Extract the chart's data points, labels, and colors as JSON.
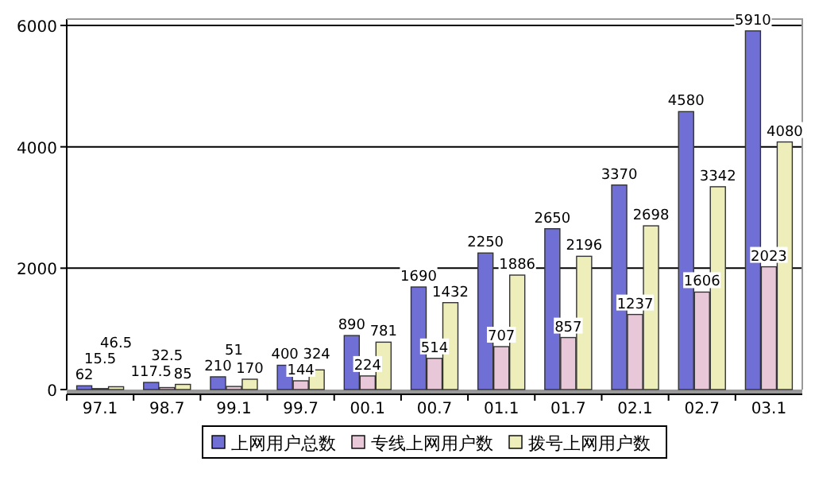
{
  "chart_data": {
    "type": "bar",
    "categories": [
      "97.1",
      "98.7",
      "99.1",
      "99.7",
      "00.1",
      "00.7",
      "01.1",
      "01.7",
      "02.1",
      "02.7",
      "03.1"
    ],
    "series": [
      {
        "name": "上网用户总数",
        "color": "#6f6fd6",
        "values": [
          62,
          117.5,
          210,
          400,
          890,
          1690,
          2250,
          2650,
          3370,
          4580,
          5910
        ]
      },
      {
        "name": "专线上网用户数",
        "color": "#e8c8d8",
        "values": [
          15.5,
          32.5,
          51,
          144,
          224,
          514,
          707,
          857,
          1237,
          1606,
          2023
        ]
      },
      {
        "name": "拨号上网用户数",
        "color": "#eeeebb",
        "values": [
          46.5,
          85,
          170,
          324,
          781,
          1432,
          1886,
          2196,
          2698,
          3342,
          4080
        ]
      }
    ],
    "ylim": [
      0,
      6000
    ],
    "yticks": [
      0,
      2000,
      4000,
      6000
    ],
    "grid": "y",
    "legend": "bottom",
    "data_labels": true
  }
}
